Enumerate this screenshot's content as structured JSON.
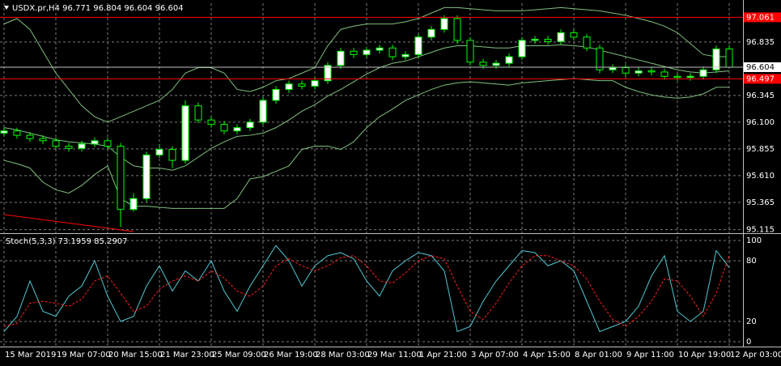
{
  "chart_data": [
    {
      "type": "candlestick",
      "title": "USDX.pr,H4  96.771 96.804 96.604 96.604",
      "categories": [
        "15 Mar 2019",
        null,
        null,
        null,
        "19 Mar 07:00",
        null,
        null,
        null,
        "20 Mar 15:00",
        null,
        null,
        null,
        "21 Mar 23:00",
        null,
        null,
        null,
        "25 Mar 09:00",
        null,
        null,
        null,
        "26 Mar 19:00",
        null,
        null,
        null,
        "28 Mar 03:00",
        null,
        null,
        null,
        "29 Mar 11:00",
        null,
        null,
        null,
        "1 Apr 21:00",
        null,
        null,
        null,
        "3 Apr 07:00",
        null,
        null,
        null,
        "4 Apr 15:00",
        null,
        null,
        null,
        "8 Apr 01:00",
        null,
        null,
        null,
        "9 Apr 11:00",
        null,
        null,
        null,
        "10 Apr 19:00",
        null,
        null,
        null,
        "12 Apr 03:00"
      ],
      "open": [
        96.0,
        96.02,
        95.98,
        95.95,
        95.93,
        95.88,
        95.86,
        95.9,
        95.93,
        95.88,
        95.3,
        95.4,
        95.8,
        95.85,
        95.75,
        96.25,
        96.12,
        96.08,
        96.02,
        96.05,
        96.1,
        96.3,
        96.4,
        96.45,
        96.43,
        96.48,
        96.62,
        96.75,
        96.72,
        96.76,
        96.78,
        96.7,
        96.72,
        96.88,
        96.95,
        97.05,
        96.85,
        96.65,
        96.62,
        96.64,
        96.7,
        96.85,
        96.86,
        96.84,
        96.92,
        96.88,
        96.78,
        96.58,
        96.6,
        96.55,
        96.57,
        96.56,
        96.52,
        96.51,
        96.52,
        96.58,
        96.771
      ],
      "high": [
        96.05,
        96.05,
        96.01,
        95.98,
        95.96,
        95.91,
        95.93,
        95.96,
        95.96,
        95.91,
        95.45,
        95.83,
        95.9,
        95.88,
        96.3,
        96.28,
        96.15,
        96.11,
        96.08,
        96.13,
        96.33,
        96.43,
        96.48,
        96.48,
        96.51,
        96.65,
        96.78,
        96.78,
        96.79,
        96.81,
        96.81,
        96.75,
        96.91,
        96.98,
        97.08,
        97.08,
        96.88,
        96.68,
        96.67,
        96.73,
        96.88,
        96.89,
        96.89,
        96.95,
        96.95,
        96.91,
        96.81,
        96.63,
        96.63,
        96.6,
        96.6,
        96.59,
        96.55,
        96.55,
        96.61,
        96.8,
        96.804
      ],
      "low": [
        95.97,
        95.95,
        95.92,
        95.9,
        95.85,
        95.83,
        95.83,
        95.87,
        95.85,
        95.14,
        95.28,
        95.37,
        95.77,
        95.68,
        95.72,
        96.09,
        96.05,
        95.99,
        95.99,
        96.02,
        96.07,
        96.27,
        96.37,
        96.4,
        96.4,
        96.45,
        96.59,
        96.69,
        96.69,
        96.73,
        96.67,
        96.67,
        96.69,
        96.85,
        96.92,
        96.82,
        96.62,
        96.59,
        96.59,
        96.61,
        96.67,
        96.82,
        96.81,
        96.81,
        96.85,
        96.75,
        96.55,
        96.55,
        96.52,
        96.52,
        96.53,
        96.49,
        96.48,
        96.48,
        96.49,
        96.55,
        96.604
      ],
      "close": [
        96.02,
        95.98,
        95.95,
        95.93,
        95.88,
        95.86,
        95.9,
        95.93,
        95.88,
        95.3,
        95.4,
        95.8,
        95.85,
        95.75,
        96.25,
        96.12,
        96.08,
        96.02,
        96.05,
        96.1,
        96.3,
        96.4,
        96.45,
        96.43,
        96.48,
        96.62,
        96.75,
        96.72,
        96.76,
        96.78,
        96.7,
        96.72,
        96.88,
        96.95,
        97.05,
        96.85,
        96.65,
        96.62,
        96.64,
        96.7,
        96.85,
        96.86,
        96.84,
        96.92,
        96.88,
        96.78,
        96.58,
        96.6,
        96.55,
        96.57,
        96.56,
        96.52,
        96.51,
        96.52,
        96.58,
        96.771,
        96.604
      ],
      "up_color": "#ffffff",
      "down_color": "#000000",
      "wick_color": "#00ff00",
      "overlays": [
        {
          "color": "#7fbf7f",
          "values": [
            97.0,
            97.05,
            96.95,
            96.75,
            96.55,
            96.4,
            96.25,
            96.15,
            96.1,
            96.15,
            96.2,
            96.25,
            96.3,
            96.4,
            96.55,
            96.6,
            96.6,
            96.55,
            96.4,
            96.38,
            96.42,
            96.48,
            96.5,
            96.55,
            96.6,
            96.8,
            96.95,
            96.98,
            97.0,
            97.0,
            97.0,
            97.02,
            97.05,
            97.1,
            97.15,
            97.15,
            97.14,
            97.13,
            97.12,
            97.12,
            97.12,
            97.13,
            97.14,
            97.15,
            97.14,
            97.13,
            97.12,
            97.1,
            97.08,
            97.05,
            97.02,
            96.98,
            96.92,
            96.82,
            96.72,
            96.7,
            96.7
          ]
        },
        {
          "color": "#7fbf7f",
          "values": [
            96.05,
            96.03,
            96.0,
            95.97,
            95.94,
            95.92,
            95.91,
            95.9,
            95.88,
            95.78,
            95.7,
            95.68,
            95.68,
            95.66,
            95.7,
            95.78,
            95.86,
            95.92,
            95.97,
            95.98,
            96.0,
            96.05,
            96.12,
            96.2,
            96.26,
            96.34,
            96.4,
            96.47,
            96.54,
            96.6,
            96.64,
            96.66,
            96.7,
            96.74,
            96.78,
            96.8,
            96.8,
            96.79,
            96.78,
            96.78,
            96.8,
            96.8,
            96.8,
            96.81,
            96.8,
            96.79,
            96.76,
            96.73,
            96.7,
            96.67,
            96.64,
            96.61,
            96.58,
            96.56,
            96.55,
            96.56,
            96.57
          ]
        },
        {
          "color": "#7fbf7f",
          "values": [
            95.75,
            95.72,
            95.68,
            95.55,
            95.48,
            95.45,
            95.52,
            95.62,
            95.7,
            95.4,
            95.33,
            95.33,
            95.32,
            95.31,
            95.31,
            95.31,
            95.31,
            95.31,
            95.4,
            95.58,
            95.6,
            95.65,
            95.7,
            95.85,
            95.88,
            95.88,
            95.85,
            95.92,
            96.05,
            96.15,
            96.22,
            96.3,
            96.35,
            96.4,
            96.44,
            96.46,
            96.47,
            96.46,
            96.45,
            96.44,
            96.46,
            96.47,
            96.48,
            96.49,
            96.5,
            96.49,
            96.48,
            96.48,
            96.42,
            96.38,
            96.35,
            96.33,
            96.32,
            96.33,
            96.36,
            96.42,
            96.42
          ]
        }
      ],
      "hlines": [
        {
          "value": 97.061,
          "color": "#ff0000"
        },
        {
          "value": 96.497,
          "color": "#ff0000"
        }
      ],
      "last_price": {
        "value": 96.604,
        "color": "#c0c0c0"
      },
      "ylim": [
        95.09,
        97.19
      ],
      "yticks": [
        95.115,
        95.365,
        {
          "value": 95.61,
          "label": "95.610"
        },
        95.855,
        {
          "value": 96.1,
          "label": "96.100"
        },
        96.345,
        96.835
      ],
      "grid": true
    },
    {
      "type": "line",
      "title": "Stoch(5,3,3) 73.1959 85.2907",
      "series": [
        {
          "color": "#4fc8d2",
          "dashed": false,
          "values": [
            10,
            25,
            60,
            30,
            25,
            45,
            55,
            80,
            45,
            20,
            25,
            55,
            75,
            50,
            70,
            60,
            80,
            50,
            30,
            55,
            75,
            95,
            80,
            55,
            75,
            85,
            88,
            82,
            60,
            45,
            70,
            80,
            88,
            85,
            70,
            10,
            15,
            40,
            60,
            75,
            90,
            88,
            75,
            80,
            70,
            40,
            10,
            15,
            20,
            35,
            65,
            85,
            30,
            20,
            30,
            90,
            73.1959
          ]
        },
        {
          "color": "#ff2020",
          "dashed": true,
          "values": [
            15,
            18,
            38,
            40,
            38,
            35,
            42,
            60,
            65,
            48,
            30,
            35,
            52,
            60,
            65,
            60,
            70,
            63,
            50,
            45,
            55,
            75,
            82,
            75,
            70,
            75,
            83,
            85,
            75,
            60,
            58,
            68,
            80,
            85,
            82,
            55,
            30,
            22,
            38,
            58,
            75,
            85,
            85,
            80,
            75,
            62,
            40,
            22,
            15,
            25,
            40,
            62,
            60,
            45,
            25,
            48,
            85.2907
          ]
        }
      ],
      "ylim": [
        -4,
        105.6
      ],
      "yticks": [
        0,
        20,
        80,
        100
      ],
      "grid": true
    }
  ]
}
